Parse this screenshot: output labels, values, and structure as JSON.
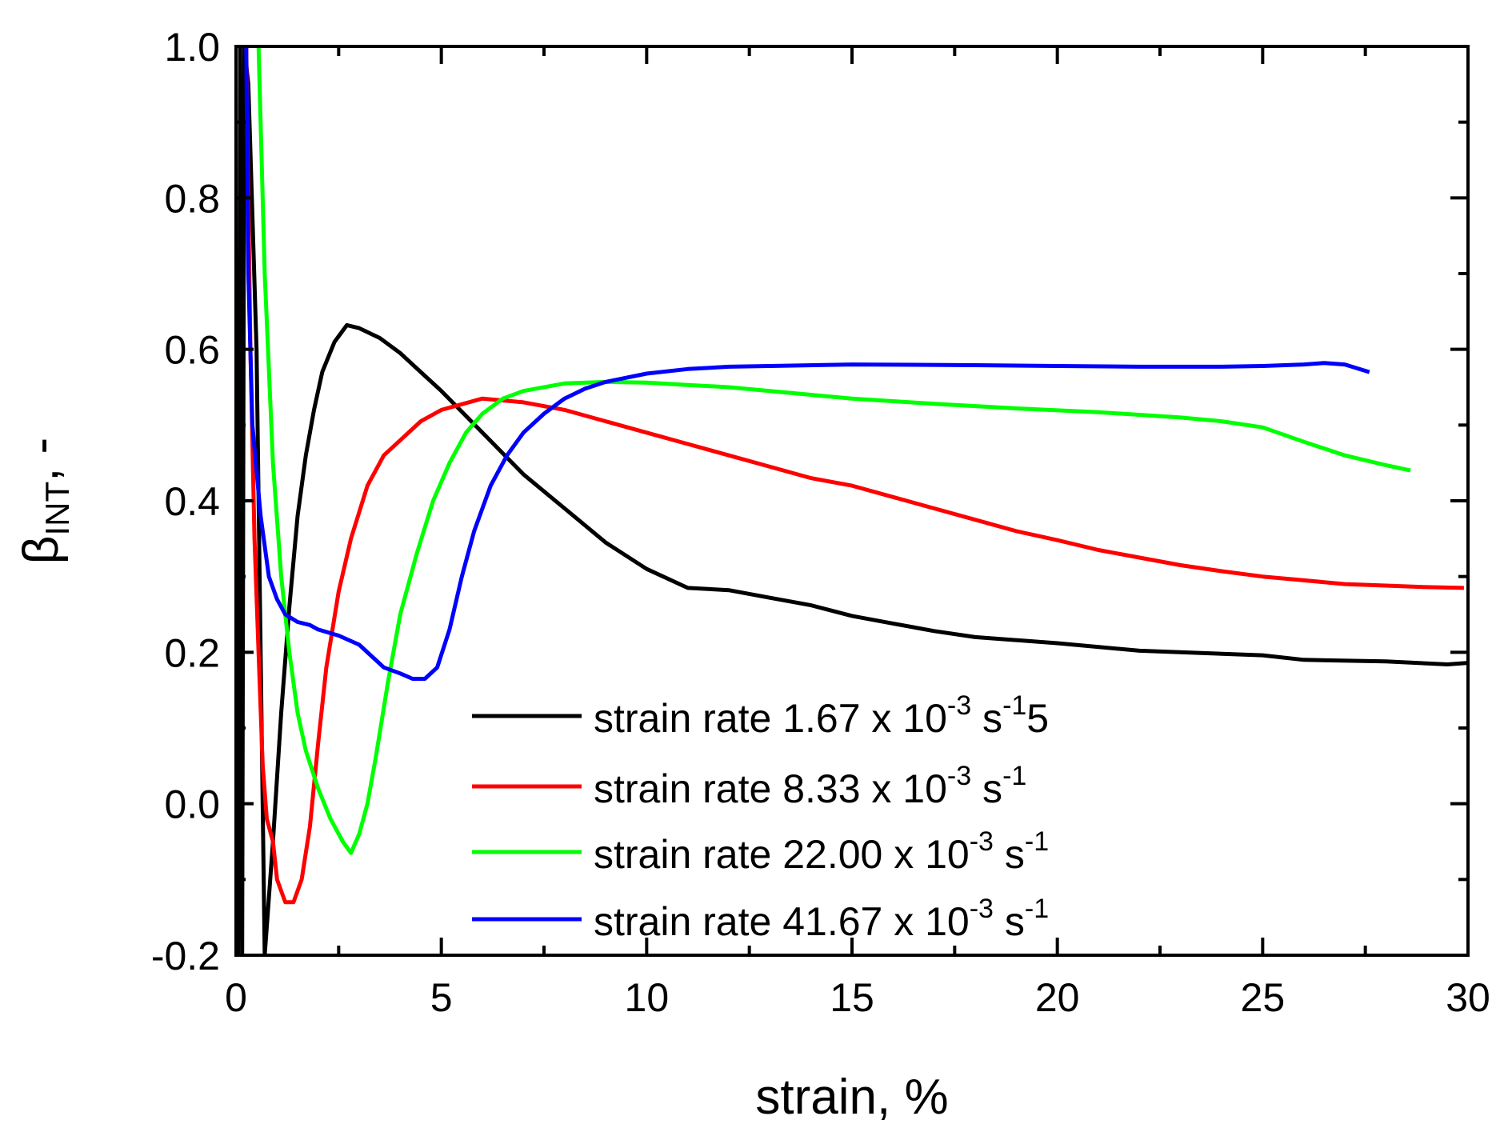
{
  "chart_data": {
    "type": "line",
    "title": "",
    "xlabel": "strain, %",
    "ylabel": {
      "base": "β",
      "sub": "INT",
      "suffix": ", -"
    },
    "xlim": [
      0,
      30
    ],
    "ylim": [
      -0.2,
      1.0
    ],
    "xticks": [
      0,
      5,
      10,
      15,
      20,
      25,
      30
    ],
    "xtick_labels": [
      "0",
      "5",
      "10",
      "15",
      "20",
      "25",
      "30"
    ],
    "yticks": [
      -0.2,
      0.0,
      0.2,
      0.4,
      0.6,
      0.8,
      1.0
    ],
    "ytick_labels": [
      "-0.2",
      "0.0",
      "0.2",
      "0.4",
      "0.6",
      "0.8",
      "1.0"
    ],
    "grid": false,
    "legend_position": "bottom-center",
    "series": [
      {
        "name": "strain rate 1.67 x 10-3 s-15",
        "legend": {
          "prefix": "strain rate 1.67 x 10",
          "exp1": "-3",
          "mid": " s",
          "exp2": "-1",
          "tail": "5"
        },
        "color": "#000000",
        "points": [
          [
            0.05,
            -0.2
          ],
          [
            0.1,
            1.0
          ],
          [
            0.15,
            -0.2
          ],
          [
            0.2,
            1.0
          ],
          [
            0.3,
            0.95
          ],
          [
            0.5,
            0.6
          ],
          [
            0.7,
            -0.2
          ],
          [
            0.9,
            -0.05
          ],
          [
            1.1,
            0.12
          ],
          [
            1.3,
            0.26
          ],
          [
            1.5,
            0.38
          ],
          [
            1.7,
            0.46
          ],
          [
            1.9,
            0.52
          ],
          [
            2.1,
            0.57
          ],
          [
            2.4,
            0.61
          ],
          [
            2.7,
            0.632
          ],
          [
            3.0,
            0.628
          ],
          [
            3.5,
            0.615
          ],
          [
            4.0,
            0.595
          ],
          [
            4.5,
            0.57
          ],
          [
            5.0,
            0.545
          ],
          [
            6.0,
            0.49
          ],
          [
            7.0,
            0.435
          ],
          [
            8.0,
            0.39
          ],
          [
            9.0,
            0.345
          ],
          [
            10.0,
            0.31
          ],
          [
            11.0,
            0.285
          ],
          [
            12.0,
            0.282
          ],
          [
            13.0,
            0.272
          ],
          [
            14.0,
            0.262
          ],
          [
            15.0,
            0.248
          ],
          [
            16.0,
            0.238
          ],
          [
            17.0,
            0.228
          ],
          [
            18.0,
            0.22
          ],
          [
            20.0,
            0.212
          ],
          [
            22.0,
            0.202
          ],
          [
            25.0,
            0.196
          ],
          [
            26.0,
            0.19
          ],
          [
            28.0,
            0.188
          ],
          [
            29.5,
            0.184
          ],
          [
            30.0,
            0.186
          ]
        ]
      },
      {
        "name": "strain rate 8.33 x 10-3 s-1",
        "legend": {
          "prefix": "strain rate 8.33 x 10",
          "exp1": "-3",
          "mid": " s",
          "exp2": "-1",
          "tail": ""
        },
        "color": "#ff0000",
        "points": [
          [
            0.25,
            1.0
          ],
          [
            0.35,
            0.6
          ],
          [
            0.45,
            0.35
          ],
          [
            0.55,
            0.2
          ],
          [
            0.65,
            0.05
          ],
          [
            0.75,
            -0.02
          ],
          [
            0.9,
            -0.05
          ],
          [
            1.0,
            -0.1
          ],
          [
            1.2,
            -0.13
          ],
          [
            1.4,
            -0.13
          ],
          [
            1.6,
            -0.1
          ],
          [
            1.8,
            -0.03
          ],
          [
            2.0,
            0.08
          ],
          [
            2.2,
            0.18
          ],
          [
            2.5,
            0.28
          ],
          [
            2.8,
            0.35
          ],
          [
            3.2,
            0.42
          ],
          [
            3.6,
            0.46
          ],
          [
            4.0,
            0.48
          ],
          [
            4.5,
            0.505
          ],
          [
            5.0,
            0.52
          ],
          [
            6.0,
            0.535
          ],
          [
            7.0,
            0.53
          ],
          [
            8.0,
            0.52
          ],
          [
            9.0,
            0.505
          ],
          [
            10.0,
            0.49
          ],
          [
            11.0,
            0.475
          ],
          [
            12.0,
            0.46
          ],
          [
            13.0,
            0.445
          ],
          [
            14.0,
            0.43
          ],
          [
            15.0,
            0.42
          ],
          [
            16.0,
            0.405
          ],
          [
            17.0,
            0.39
          ],
          [
            18.0,
            0.375
          ],
          [
            19.0,
            0.36
          ],
          [
            20.0,
            0.348
          ],
          [
            21.0,
            0.335
          ],
          [
            22.0,
            0.325
          ],
          [
            23.0,
            0.315
          ],
          [
            24.0,
            0.307
          ],
          [
            25.0,
            0.3
          ],
          [
            26.0,
            0.295
          ],
          [
            27.0,
            0.29
          ],
          [
            28.0,
            0.288
          ],
          [
            29.0,
            0.286
          ],
          [
            29.9,
            0.285
          ]
        ]
      },
      {
        "name": "strain rate 22.00 x 10-3 s-1",
        "legend": {
          "prefix": "strain rate 22.00 x 10",
          "exp1": "-3",
          "mid": " s",
          "exp2": "-1",
          "tail": ""
        },
        "color": "#00ff00",
        "points": [
          [
            0.55,
            1.0
          ],
          [
            0.7,
            0.7
          ],
          [
            0.9,
            0.45
          ],
          [
            1.1,
            0.3
          ],
          [
            1.3,
            0.2
          ],
          [
            1.5,
            0.12
          ],
          [
            1.7,
            0.07
          ],
          [
            2.0,
            0.02
          ],
          [
            2.3,
            -0.02
          ],
          [
            2.6,
            -0.05
          ],
          [
            2.8,
            -0.065
          ],
          [
            3.0,
            -0.04
          ],
          [
            3.2,
            0.0
          ],
          [
            3.4,
            0.06
          ],
          [
            3.7,
            0.16
          ],
          [
            4.0,
            0.25
          ],
          [
            4.4,
            0.33
          ],
          [
            4.8,
            0.4
          ],
          [
            5.2,
            0.45
          ],
          [
            5.6,
            0.49
          ],
          [
            6.0,
            0.515
          ],
          [
            6.5,
            0.535
          ],
          [
            7.0,
            0.545
          ],
          [
            8.0,
            0.555
          ],
          [
            9.0,
            0.557
          ],
          [
            10.0,
            0.556
          ],
          [
            11.0,
            0.553
          ],
          [
            12.0,
            0.55
          ],
          [
            13.0,
            0.545
          ],
          [
            14.0,
            0.54
          ],
          [
            15.0,
            0.535
          ],
          [
            17.0,
            0.528
          ],
          [
            19.0,
            0.522
          ],
          [
            21.0,
            0.517
          ],
          [
            23.0,
            0.51
          ],
          [
            24.0,
            0.505
          ],
          [
            25.0,
            0.497
          ],
          [
            26.0,
            0.478
          ],
          [
            27.0,
            0.46
          ],
          [
            28.0,
            0.447
          ],
          [
            28.6,
            0.44
          ]
        ]
      },
      {
        "name": "strain rate 41.67 x 10-3 s-1",
        "legend": {
          "prefix": "strain rate 41.67 x 10",
          "exp1": "-3",
          "mid": " s",
          "exp2": "-1",
          "tail": ""
        },
        "color": "#0000ff",
        "points": [
          [
            0.25,
            1.0
          ],
          [
            0.3,
            0.7
          ],
          [
            0.4,
            0.5
          ],
          [
            0.6,
            0.38
          ],
          [
            0.8,
            0.3
          ],
          [
            1.0,
            0.27
          ],
          [
            1.2,
            0.25
          ],
          [
            1.5,
            0.24
          ],
          [
            1.8,
            0.236
          ],
          [
            2.0,
            0.23
          ],
          [
            2.5,
            0.222
          ],
          [
            3.0,
            0.21
          ],
          [
            3.3,
            0.195
          ],
          [
            3.6,
            0.18
          ],
          [
            4.0,
            0.172
          ],
          [
            4.3,
            0.165
          ],
          [
            4.6,
            0.165
          ],
          [
            4.9,
            0.18
          ],
          [
            5.2,
            0.23
          ],
          [
            5.5,
            0.3
          ],
          [
            5.8,
            0.36
          ],
          [
            6.2,
            0.42
          ],
          [
            6.6,
            0.46
          ],
          [
            7.0,
            0.49
          ],
          [
            7.5,
            0.515
          ],
          [
            8.0,
            0.535
          ],
          [
            8.5,
            0.548
          ],
          [
            9.0,
            0.557
          ],
          [
            10.0,
            0.568
          ],
          [
            11.0,
            0.574
          ],
          [
            12.0,
            0.577
          ],
          [
            13.0,
            0.578
          ],
          [
            15.0,
            0.58
          ],
          [
            18.0,
            0.579
          ],
          [
            20.0,
            0.578
          ],
          [
            22.0,
            0.577
          ],
          [
            24.0,
            0.577
          ],
          [
            25.0,
            0.578
          ],
          [
            26.0,
            0.58
          ],
          [
            26.5,
            0.582
          ],
          [
            27.0,
            0.58
          ],
          [
            27.6,
            0.57
          ]
        ]
      }
    ]
  }
}
